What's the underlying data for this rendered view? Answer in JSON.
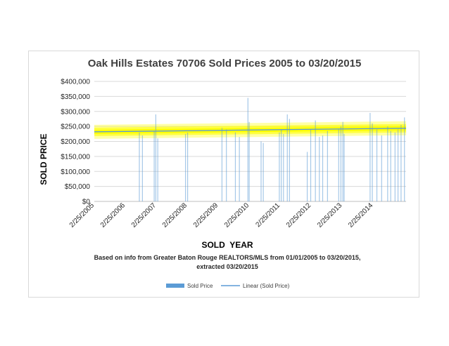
{
  "chart_data": {
    "type": "bar",
    "title": "Oak Hills Estates 70706 Sold Prices 2005 to 03/20/2015",
    "xlabel": "SOLD  YEAR",
    "ylabel": "SOLD PRICE",
    "ylim": [
      0,
      400000
    ],
    "y_ticks": [
      0,
      50000,
      100000,
      150000,
      200000,
      250000,
      300000,
      350000,
      400000
    ],
    "y_tick_labels": [
      "$0",
      "$50,000",
      "$100,000",
      "$150,000",
      "$200,000",
      "$250,000",
      "$300,000",
      "$350,000",
      "$400,000"
    ],
    "x_range": [
      "2005-02-25",
      "2015-03-20"
    ],
    "x_tick_dates": [
      "2005-02-25",
      "2006-02-25",
      "2007-02-25",
      "2008-02-25",
      "2009-02-25",
      "2010-02-25",
      "2011-02-25",
      "2012-02-25",
      "2013-02-25",
      "2014-02-25"
    ],
    "x_tick_labels": [
      "2/25/2005",
      "2/25/2006",
      "2/25/2007",
      "2/25/2008",
      "2/25/2009",
      "2/25/2010",
      "2/25/2011",
      "2/25/2012",
      "2/25/2013",
      "2/25/2014"
    ],
    "grid": true,
    "legend_position": "bottom",
    "note": [
      "Based on info from Greater Baton Rouge REALTORS/MLS from 01/01/2005 to 03/20/2015,",
      "extracted 03/20/2015"
    ],
    "series": [
      {
        "name": "Sold Price",
        "kind": "bar",
        "color": "#5b9bd5",
        "points": [
          {
            "x": "2006-08-10",
            "y": 230000
          },
          {
            "x": "2006-09-15",
            "y": 220000
          },
          {
            "x": "2007-02-01",
            "y": 235000
          },
          {
            "x": "2007-02-20",
            "y": 290000
          },
          {
            "x": "2007-03-15",
            "y": 210000
          },
          {
            "x": "2008-02-05",
            "y": 225000
          },
          {
            "x": "2008-03-01",
            "y": 230000
          },
          {
            "x": "2009-04-10",
            "y": 245000
          },
          {
            "x": "2009-06-01",
            "y": 240000
          },
          {
            "x": "2009-09-15",
            "y": 230000
          },
          {
            "x": "2009-11-01",
            "y": 215000
          },
          {
            "x": "2010-02-10",
            "y": 345000
          },
          {
            "x": "2010-02-25",
            "y": 265000
          },
          {
            "x": "2010-07-15",
            "y": 200000
          },
          {
            "x": "2010-08-10",
            "y": 195000
          },
          {
            "x": "2011-02-15",
            "y": 230000
          },
          {
            "x": "2011-03-10",
            "y": 240000
          },
          {
            "x": "2011-04-05",
            "y": 225000
          },
          {
            "x": "2011-05-20",
            "y": 290000
          },
          {
            "x": "2011-06-15",
            "y": 275000
          },
          {
            "x": "2012-01-10",
            "y": 165000
          },
          {
            "x": "2012-02-20",
            "y": 240000
          },
          {
            "x": "2012-04-15",
            "y": 270000
          },
          {
            "x": "2012-06-01",
            "y": 215000
          },
          {
            "x": "2012-07-10",
            "y": 220000
          },
          {
            "x": "2012-09-05",
            "y": 235000
          },
          {
            "x": "2013-01-15",
            "y": 240000
          },
          {
            "x": "2013-02-10",
            "y": 250000
          },
          {
            "x": "2013-03-05",
            "y": 265000
          },
          {
            "x": "2013-03-20",
            "y": 225000
          },
          {
            "x": "2014-01-20",
            "y": 295000
          },
          {
            "x": "2014-02-15",
            "y": 260000
          },
          {
            "x": "2014-04-10",
            "y": 240000
          },
          {
            "x": "2014-06-05",
            "y": 220000
          },
          {
            "x": "2014-08-15",
            "y": 250000
          },
          {
            "x": "2014-09-20",
            "y": 235000
          },
          {
            "x": "2014-11-10",
            "y": 230000
          },
          {
            "x": "2014-12-15",
            "y": 240000
          },
          {
            "x": "2015-01-20",
            "y": 255000
          },
          {
            "x": "2015-03-01",
            "y": 280000
          }
        ]
      },
      {
        "name": "Linear (Sold Price)",
        "kind": "trendline",
        "color": "#5b9bd5",
        "highlight_color": "#ffff00",
        "start": {
          "x": "2005-02-25",
          "y": 232000
        },
        "end": {
          "x": "2015-03-20",
          "y": 244000
        }
      }
    ]
  }
}
